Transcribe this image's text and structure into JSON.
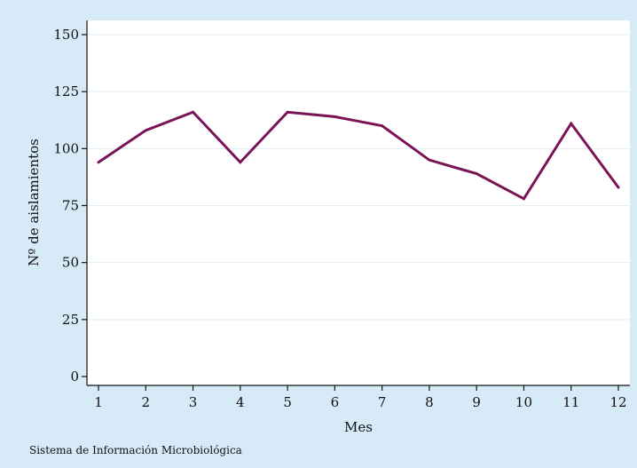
{
  "chart_data": {
    "type": "line",
    "xlabel": "Mes",
    "ylabel": "Nº de aislamientos",
    "x": [
      1,
      2,
      3,
      4,
      5,
      6,
      7,
      8,
      9,
      10,
      11,
      12
    ],
    "series": [
      {
        "values": [
          94,
          108,
          116,
          94,
          116,
          114,
          110,
          95,
          89,
          78,
          111,
          83
        ]
      }
    ],
    "xticks": [
      "1",
      "2",
      "3",
      "4",
      "5",
      "6",
      "7",
      "8",
      "9",
      "10",
      "11",
      "12"
    ],
    "yticks": [
      0,
      25,
      50,
      75,
      100,
      125,
      150
    ],
    "xlim": [
      1,
      12
    ],
    "ylim": [
      0,
      150
    ],
    "grid": "horizontal",
    "line_color": "#7a1457",
    "background_color": "#d6eaf8",
    "plot_color": "#ffffff",
    "grid_color": "#e2edf5"
  },
  "footer": {
    "source": "Sistema de Información Microbiológica"
  }
}
